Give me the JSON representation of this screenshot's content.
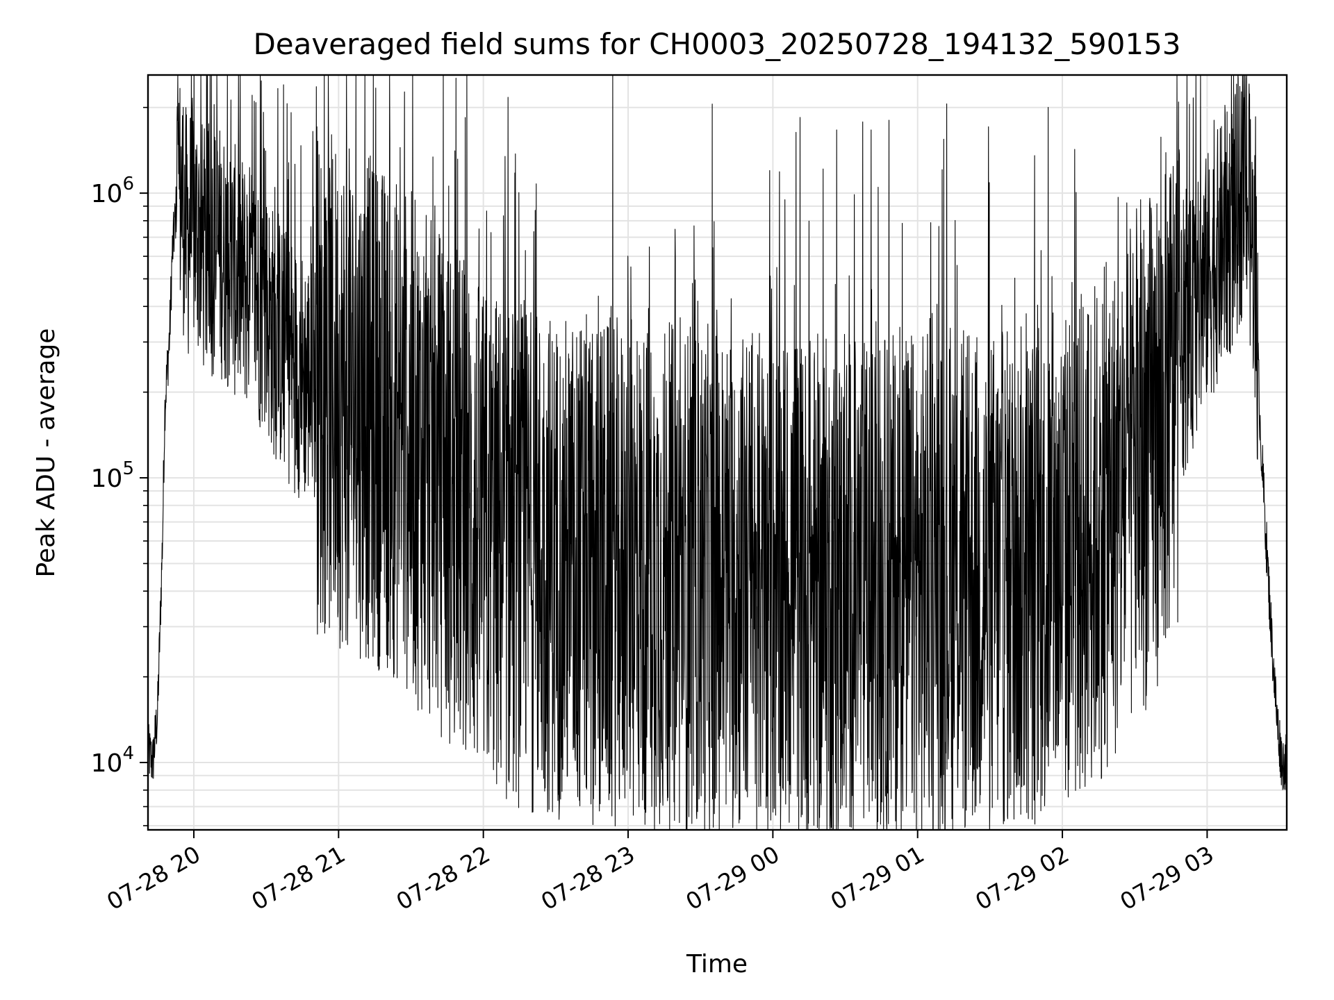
{
  "chart_data": {
    "type": "line",
    "title": "Deaveraged field sums for CH0003_20250728_194132_590153",
    "xlabel": "Time",
    "ylabel": "Peak ADU - average",
    "yscale": "log",
    "ylim": [
      5800,
      2600000
    ],
    "xlim": [
      "07-28 19:41",
      "07-29 03:33"
    ],
    "grid": true,
    "x_tick_labels": [
      "07-28 20",
      "07-28 21",
      "07-28 22",
      "07-28 23",
      "07-29 00",
      "07-29 01",
      "07-29 02",
      "07-29 03"
    ],
    "x_tick_times": [
      "07-28 20:00",
      "07-28 21:00",
      "07-28 22:00",
      "07-28 23:00",
      "07-29 00:00",
      "07-29 01:00",
      "07-29 02:00",
      "07-29 03:00"
    ],
    "y_ticks": [
      {
        "base": "10",
        "exp": "4",
        "value": 10000
      },
      {
        "base": "10",
        "exp": "5",
        "value": 100000
      },
      {
        "base": "10",
        "exp": "6",
        "value": 1000000
      }
    ],
    "series": [
      {
        "color": "#000000",
        "points": [
          [
            "07-28 19:41",
            11000
          ],
          [
            "07-28 19:43",
            10000
          ],
          [
            "07-28 19:45",
            15000
          ],
          [
            "07-28 19:47",
            60000
          ],
          [
            "07-28 19:48",
            180000
          ],
          [
            "07-28 19:50",
            320000
          ],
          [
            "07-28 19:51",
            600000
          ],
          [
            "07-28 19:53",
            950000
          ],
          [
            "07-28 19:55",
            1000000
          ],
          [
            "07-28 19:57",
            700000
          ],
          [
            "07-28 20:00",
            800000
          ],
          [
            "07-28 20:05",
            600000
          ],
          [
            "07-28 20:10",
            650000
          ],
          [
            "07-28 20:15",
            550000
          ],
          [
            "07-28 20:20",
            500000
          ],
          [
            "07-28 20:25",
            450000
          ],
          [
            "07-28 20:30",
            380000
          ],
          [
            "07-28 20:35",
            300000
          ],
          [
            "07-28 20:40",
            260000
          ],
          [
            "07-28 20:45",
            230000
          ],
          [
            "07-28 20:50",
            220000
          ],
          [
            "07-28 20:55",
            210000
          ],
          [
            "07-28 21:00",
            200000
          ],
          [
            "07-28 21:10",
            180000
          ],
          [
            "07-28 21:20",
            160000
          ],
          [
            "07-28 21:30",
            130000
          ],
          [
            "07-28 21:40",
            100000
          ],
          [
            "07-28 21:50",
            80000
          ],
          [
            "07-28 22:00",
            60000
          ],
          [
            "07-28 22:10",
            55000
          ],
          [
            "07-28 22:20",
            52000
          ],
          [
            "07-28 22:30",
            50000
          ],
          [
            "07-28 22:40",
            48000
          ],
          [
            "07-28 22:50",
            47000
          ],
          [
            "07-28 23:00",
            46000
          ],
          [
            "07-28 23:15",
            45000
          ],
          [
            "07-28 23:30",
            44000
          ],
          [
            "07-28 23:45",
            43000
          ],
          [
            "07-29 00:00",
            42000
          ],
          [
            "07-29 00:15",
            41000
          ],
          [
            "07-29 00:30",
            40000
          ],
          [
            "07-29 00:45",
            41000
          ],
          [
            "07-29 01:00",
            42000
          ],
          [
            "07-29 01:15",
            42000
          ],
          [
            "07-29 01:30",
            43000
          ],
          [
            "07-29 01:45",
            45000
          ],
          [
            "07-29 02:00",
            50000
          ],
          [
            "07-29 02:10",
            60000
          ],
          [
            "07-29 02:20",
            75000
          ],
          [
            "07-29 02:30",
            100000
          ],
          [
            "07-29 02:40",
            150000
          ],
          [
            "07-29 02:50",
            280000
          ],
          [
            "07-29 03:00",
            500000
          ],
          [
            "07-29 03:10",
            750000
          ],
          [
            "07-29 03:16",
            1100000
          ],
          [
            "07-29 03:20",
            500000
          ],
          [
            "07-29 03:22",
            150000
          ],
          [
            "07-29 03:25",
            50000
          ],
          [
            "07-29 03:27",
            25000
          ],
          [
            "07-29 03:29",
            14000
          ],
          [
            "07-29 03:31",
            10000
          ],
          [
            "07-29 03:33",
            10000
          ]
        ]
      }
    ]
  }
}
